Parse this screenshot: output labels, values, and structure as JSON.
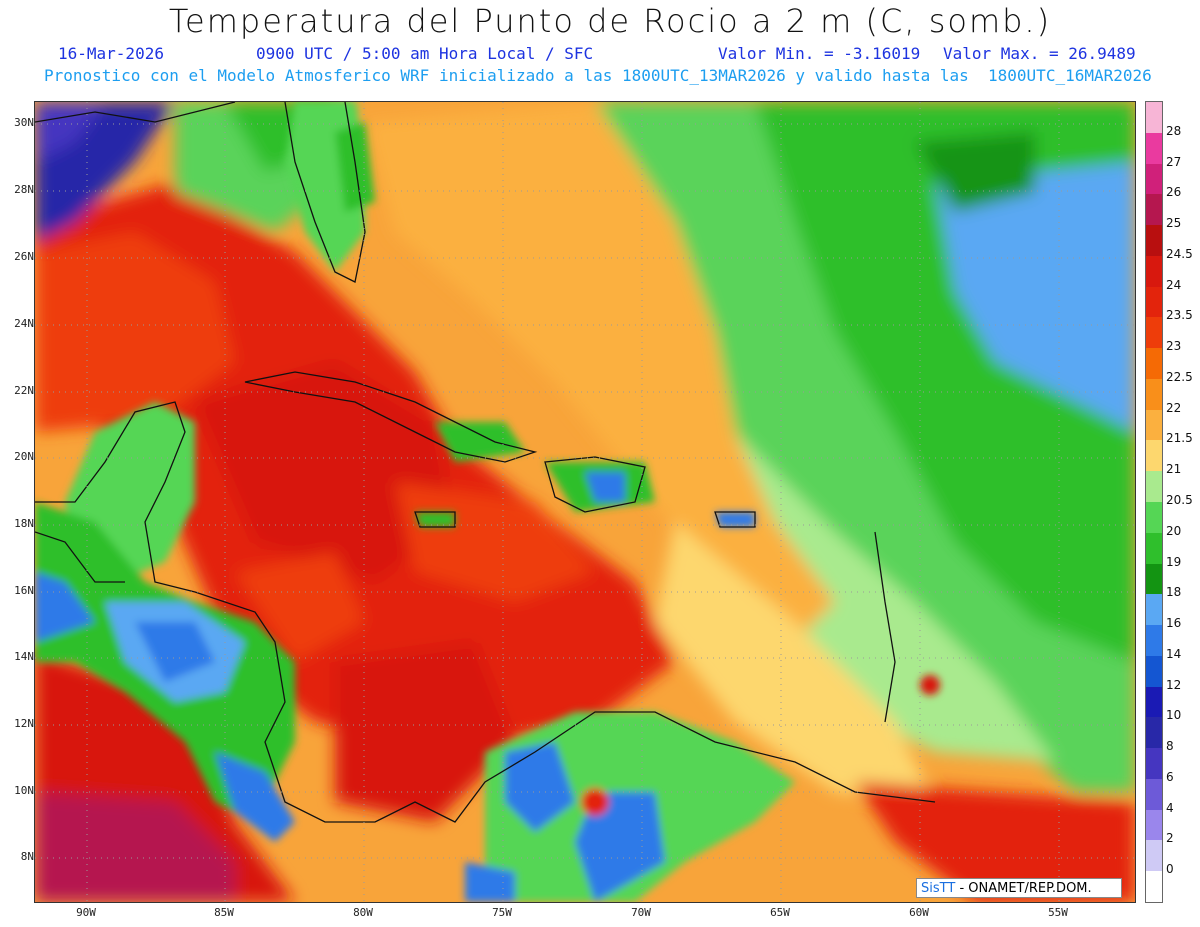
{
  "title": "Temperatura del Punto de Rocio a 2 m (C, somb.)",
  "date": "16-Mar-2026",
  "time_info": "0900 UTC / 5:00 am Hora Local / SFC",
  "min_value": "Valor Min. = -3.16019",
  "max_value": "Valor Max. = 26.9489",
  "model_info": "Pronostico con el Modelo Atmosferico WRF inicializado a las 1800UTC_13MAR2026 y valido hasta las  1800UTC_16MAR2026",
  "lat_labels": [
    "30N",
    "28N",
    "26N",
    "24N",
    "22N",
    "20N",
    "18N",
    "16N",
    "14N",
    "12N",
    "10N",
    "8N"
  ],
  "lon_labels": [
    "90W",
    "85W",
    "80W",
    "75W",
    "70W",
    "65W",
    "60W",
    "55W"
  ],
  "colorbar": {
    "labels": [
      "28",
      "27",
      "26",
      "25",
      "24.5",
      "24",
      "23.5",
      "23",
      "22.5",
      "22",
      "21.5",
      "21",
      "20.5",
      "20",
      "19",
      "18",
      "16",
      "14",
      "12",
      "10",
      "8",
      "6",
      "4",
      "2",
      "0"
    ],
    "colors": [
      "#f7b5d6",
      "#ea3a9f",
      "#d0207a",
      "#b5174f",
      "#b80f0f",
      "#d8180e",
      "#e3240c",
      "#ee3d0a",
      "#f56a05",
      "#f98f1a",
      "#fbb03f",
      "#fdd76e",
      "#a9ea8e",
      "#55d655",
      "#2fbf2c",
      "#139412",
      "#5aa8f3",
      "#2e7ae8",
      "#1456d2",
      "#1a1ab4",
      "#2828a8",
      "#4536c0",
      "#6d5ad8",
      "#9a86ec",
      "#cfcaf5",
      "#ffffff"
    ]
  },
  "logo": {
    "sis": "SisTT",
    "org": "- ONAMET/REP.DOM."
  }
}
